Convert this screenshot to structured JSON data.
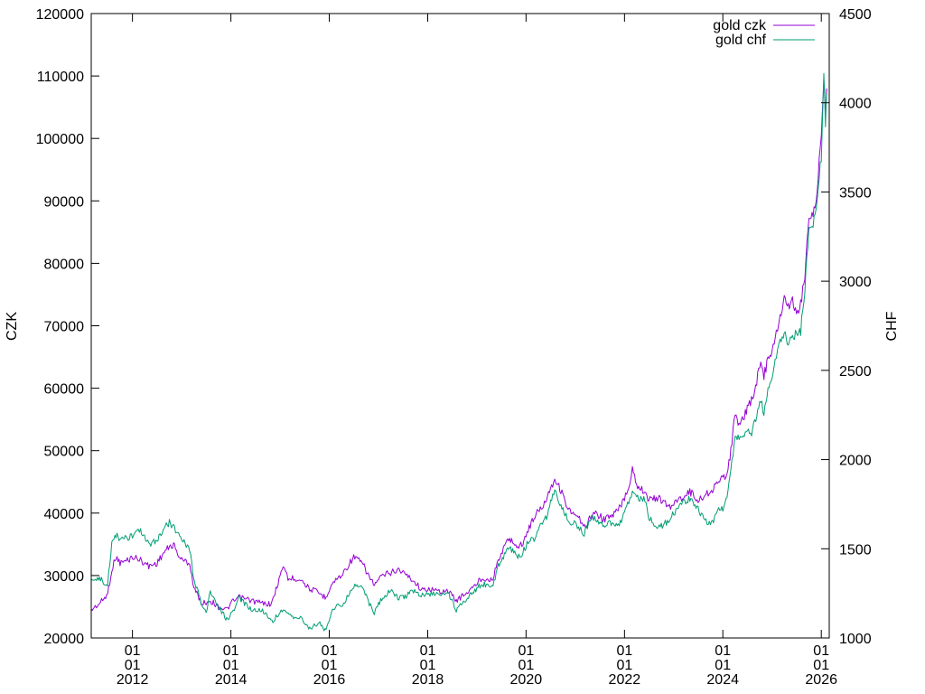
{
  "chart_data": {
    "type": "line",
    "title": "",
    "ylabel": "CZK",
    "y2label": "CHF",
    "xlim": [
      "2011-03-01",
      "2026-03-01"
    ],
    "ylim": [
      20000,
      120000
    ],
    "y2lim": [
      1000,
      4500
    ],
    "y_ticks": [
      20000,
      30000,
      40000,
      50000,
      60000,
      70000,
      80000,
      90000,
      100000,
      110000,
      120000
    ],
    "y2_ticks": [
      1000,
      1500,
      2000,
      2500,
      3000,
      3500,
      4000,
      4500
    ],
    "x_ticks": [
      {
        "date": "2012-01-01",
        "lines": [
          "01",
          "01",
          "2012"
        ]
      },
      {
        "date": "2014-01-01",
        "lines": [
          "01",
          "01",
          "2014"
        ]
      },
      {
        "date": "2016-01-01",
        "lines": [
          "01",
          "01",
          "2016"
        ]
      },
      {
        "date": "2018-01-01",
        "lines": [
          "01",
          "01",
          "2018"
        ]
      },
      {
        "date": "2020-01-01",
        "lines": [
          "01",
          "01",
          "2020"
        ]
      },
      {
        "date": "2022-01-01",
        "lines": [
          "01",
          "01",
          "2022"
        ]
      },
      {
        "date": "2024-01-01",
        "lines": [
          "01",
          "01",
          "2024"
        ]
      },
      {
        "date": "2026-01-01",
        "lines": [
          "01",
          "01",
          "2026"
        ]
      }
    ],
    "grid": false,
    "legend_position": "top-right",
    "series": [
      {
        "name": "gold czk",
        "axis": "left",
        "color": "#9400d3",
        "points": [
          [
            "2011-03-01",
            24500
          ],
          [
            "2011-05-01",
            25500
          ],
          [
            "2011-07-01",
            27000
          ],
          [
            "2011-08-01",
            31000
          ],
          [
            "2011-09-01",
            33000
          ],
          [
            "2011-10-01",
            32000
          ],
          [
            "2011-12-01",
            32500
          ],
          [
            "2012-01-01",
            33000
          ],
          [
            "2012-03-01",
            32500
          ],
          [
            "2012-05-01",
            31500
          ],
          [
            "2012-07-01",
            32000
          ],
          [
            "2012-09-01",
            34000
          ],
          [
            "2012-11-01",
            35000
          ],
          [
            "2012-12-01",
            33500
          ],
          [
            "2013-01-01",
            32500
          ],
          [
            "2013-03-01",
            32000
          ],
          [
            "2013-04-01",
            28000
          ],
          [
            "2013-06-01",
            25500
          ],
          [
            "2013-08-01",
            26000
          ],
          [
            "2013-10-01",
            25000
          ],
          [
            "2013-12-01",
            24500
          ],
          [
            "2014-01-01",
            25500
          ],
          [
            "2014-03-01",
            26500
          ],
          [
            "2014-06-01",
            26000
          ],
          [
            "2014-09-01",
            25500
          ],
          [
            "2014-11-01",
            25500
          ],
          [
            "2015-01-01",
            30000
          ],
          [
            "2015-02-01",
            31500
          ],
          [
            "2015-03-01",
            29500
          ],
          [
            "2015-06-01",
            29500
          ],
          [
            "2015-08-01",
            28000
          ],
          [
            "2015-11-01",
            27000
          ],
          [
            "2015-12-01",
            26500
          ],
          [
            "2016-02-01",
            29000
          ],
          [
            "2016-04-01",
            30000
          ],
          [
            "2016-07-01",
            33000
          ],
          [
            "2016-09-01",
            32000
          ],
          [
            "2016-11-01",
            29500
          ],
          [
            "2016-12-01",
            28500
          ],
          [
            "2017-02-01",
            30000
          ],
          [
            "2017-04-01",
            30500
          ],
          [
            "2017-06-01",
            31000
          ],
          [
            "2017-08-01",
            30000
          ],
          [
            "2017-09-01",
            29500
          ],
          [
            "2017-12-01",
            27500
          ],
          [
            "2018-01-01",
            28000
          ],
          [
            "2018-03-01",
            27500
          ],
          [
            "2018-06-01",
            27500
          ],
          [
            "2018-08-01",
            26000
          ],
          [
            "2018-10-01",
            27000
          ],
          [
            "2018-12-01",
            28000
          ],
          [
            "2019-02-01",
            29500
          ],
          [
            "2019-05-01",
            29500
          ],
          [
            "2019-06-01",
            32000
          ],
          [
            "2019-08-01",
            35000
          ],
          [
            "2019-09-01",
            36000
          ],
          [
            "2019-11-01",
            34500
          ],
          [
            "2019-12-01",
            35000
          ],
          [
            "2020-02-01",
            38000
          ],
          [
            "2020-03-01",
            39500
          ],
          [
            "2020-05-01",
            41000
          ],
          [
            "2020-07-01",
            44000
          ],
          [
            "2020-08-01",
            45500
          ],
          [
            "2020-10-01",
            43000
          ],
          [
            "2020-11-01",
            41000
          ],
          [
            "2020-12-01",
            40000
          ],
          [
            "2021-02-01",
            39000
          ],
          [
            "2021-03-01",
            37500
          ],
          [
            "2021-05-01",
            39500
          ],
          [
            "2021-06-01",
            40000
          ],
          [
            "2021-08-01",
            39000
          ],
          [
            "2021-10-01",
            39500
          ],
          [
            "2021-12-01",
            41000
          ],
          [
            "2022-02-01",
            44000
          ],
          [
            "2022-03-01",
            47500
          ],
          [
            "2022-04-01",
            44500
          ],
          [
            "2022-06-01",
            43500
          ],
          [
            "2022-07-01",
            42000
          ],
          [
            "2022-09-01",
            42500
          ],
          [
            "2022-10-01",
            42000
          ],
          [
            "2022-12-01",
            41000
          ],
          [
            "2023-01-01",
            41500
          ],
          [
            "2023-03-01",
            42500
          ],
          [
            "2023-05-01",
            43500
          ],
          [
            "2023-07-01",
            42000
          ],
          [
            "2023-10-01",
            43500
          ],
          [
            "2023-12-01",
            45000
          ],
          [
            "2024-01-01",
            45500
          ],
          [
            "2024-02-01",
            46500
          ],
          [
            "2024-03-01",
            50000
          ],
          [
            "2024-04-01",
            56000
          ],
          [
            "2024-05-01",
            54000
          ],
          [
            "2024-06-01",
            55000
          ],
          [
            "2024-07-01",
            57000
          ],
          [
            "2024-08-01",
            58000
          ],
          [
            "2024-09-01",
            60000
          ],
          [
            "2024-10-01",
            64000
          ],
          [
            "2024-11-01",
            62000
          ],
          [
            "2024-12-01",
            64500
          ],
          [
            "2025-01-01",
            66000
          ],
          [
            "2025-02-01",
            69000
          ],
          [
            "2025-03-01",
            71000
          ],
          [
            "2025-04-01",
            75000
          ],
          [
            "2025-05-01",
            73000
          ],
          [
            "2025-06-01",
            74000
          ],
          [
            "2025-07-01",
            72000
          ],
          [
            "2025-08-01",
            73500
          ],
          [
            "2025-09-01",
            78000
          ],
          [
            "2025-10-01",
            88000
          ],
          [
            "2025-11-01",
            87000
          ],
          [
            "2025-12-01",
            92000
          ],
          [
            "2026-01-01",
            100000
          ],
          [
            "2026-01-20",
            110000
          ],
          [
            "2026-02-01",
            104000
          ],
          [
            "2026-02-10",
            108000
          ]
        ]
      },
      {
        "name": "gold chf",
        "axis": "right",
        "color": "#009e73",
        "points": [
          [
            "2011-03-01",
            1340
          ],
          [
            "2011-05-01",
            1330
          ],
          [
            "2011-07-01",
            1300
          ],
          [
            "2011-08-01",
            1530
          ],
          [
            "2011-09-01",
            1580
          ],
          [
            "2011-10-01",
            1550
          ],
          [
            "2011-12-01",
            1560
          ],
          [
            "2012-01-01",
            1570
          ],
          [
            "2012-03-01",
            1600
          ],
          [
            "2012-05-01",
            1520
          ],
          [
            "2012-07-01",
            1550
          ],
          [
            "2012-09-01",
            1620
          ],
          [
            "2012-10-01",
            1650
          ],
          [
            "2012-11-01",
            1620
          ],
          [
            "2012-12-01",
            1590
          ],
          [
            "2013-01-01",
            1560
          ],
          [
            "2013-03-01",
            1500
          ],
          [
            "2013-04-01",
            1330
          ],
          [
            "2013-06-01",
            1180
          ],
          [
            "2013-07-01",
            1150
          ],
          [
            "2013-08-01",
            1250
          ],
          [
            "2013-10-01",
            1180
          ],
          [
            "2013-12-01",
            1100
          ],
          [
            "2014-01-01",
            1130
          ],
          [
            "2014-03-01",
            1220
          ],
          [
            "2014-06-01",
            1160
          ],
          [
            "2014-09-01",
            1150
          ],
          [
            "2014-11-01",
            1090
          ],
          [
            "2015-01-01",
            1150
          ],
          [
            "2015-02-01",
            1140
          ],
          [
            "2015-03-01",
            1130
          ],
          [
            "2015-06-01",
            1110
          ],
          [
            "2015-08-01",
            1060
          ],
          [
            "2015-11-01",
            1080
          ],
          [
            "2015-12-01",
            1040
          ],
          [
            "2016-02-01",
            1170
          ],
          [
            "2016-04-01",
            1180
          ],
          [
            "2016-07-01",
            1290
          ],
          [
            "2016-09-01",
            1290
          ],
          [
            "2016-11-01",
            1180
          ],
          [
            "2016-12-01",
            1140
          ],
          [
            "2017-02-01",
            1230
          ],
          [
            "2017-04-01",
            1260
          ],
          [
            "2017-06-01",
            1220
          ],
          [
            "2017-08-01",
            1240
          ],
          [
            "2017-09-01",
            1270
          ],
          [
            "2017-12-01",
            1240
          ],
          [
            "2018-01-01",
            1240
          ],
          [
            "2018-03-01",
            1250
          ],
          [
            "2018-06-01",
            1250
          ],
          [
            "2018-08-01",
            1160
          ],
          [
            "2018-10-01",
            1210
          ],
          [
            "2018-12-01",
            1260
          ],
          [
            "2019-02-01",
            1300
          ],
          [
            "2019-05-01",
            1290
          ],
          [
            "2019-06-01",
            1390
          ],
          [
            "2019-08-01",
            1480
          ],
          [
            "2019-09-01",
            1510
          ],
          [
            "2019-11-01",
            1450
          ],
          [
            "2019-12-01",
            1470
          ],
          [
            "2020-02-01",
            1560
          ],
          [
            "2020-03-01",
            1550
          ],
          [
            "2020-04-01",
            1620
          ],
          [
            "2020-06-01",
            1680
          ],
          [
            "2020-08-01",
            1830
          ],
          [
            "2020-09-01",
            1760
          ],
          [
            "2020-11-01",
            1670
          ],
          [
            "2020-12-01",
            1650
          ],
          [
            "2021-02-01",
            1620
          ],
          [
            "2021-03-01",
            1570
          ],
          [
            "2021-05-01",
            1690
          ],
          [
            "2021-06-01",
            1660
          ],
          [
            "2021-08-01",
            1640
          ],
          [
            "2021-10-01",
            1640
          ],
          [
            "2021-12-01",
            1650
          ],
          [
            "2022-02-01",
            1760
          ],
          [
            "2022-03-01",
            1810
          ],
          [
            "2022-04-01",
            1790
          ],
          [
            "2022-06-01",
            1780
          ],
          [
            "2022-07-01",
            1680
          ],
          [
            "2022-09-01",
            1620
          ],
          [
            "2022-10-01",
            1630
          ],
          [
            "2022-12-01",
            1660
          ],
          [
            "2023-01-01",
            1700
          ],
          [
            "2023-03-01",
            1760
          ],
          [
            "2023-05-01",
            1780
          ],
          [
            "2023-07-01",
            1720
          ],
          [
            "2023-10-01",
            1630
          ],
          [
            "2023-12-01",
            1720
          ],
          [
            "2024-01-01",
            1730
          ],
          [
            "2024-02-01",
            1780
          ],
          [
            "2024-03-01",
            1950
          ],
          [
            "2024-04-01",
            2130
          ],
          [
            "2024-05-01",
            2120
          ],
          [
            "2024-06-01",
            2130
          ],
          [
            "2024-07-01",
            2180
          ],
          [
            "2024-08-01",
            2150
          ],
          [
            "2024-09-01",
            2230
          ],
          [
            "2024-10-01",
            2340
          ],
          [
            "2024-11-01",
            2270
          ],
          [
            "2024-12-01",
            2380
          ],
          [
            "2025-01-01",
            2440
          ],
          [
            "2025-02-01",
            2580
          ],
          [
            "2025-03-01",
            2660
          ],
          [
            "2025-04-01",
            2700
          ],
          [
            "2025-05-01",
            2660
          ],
          [
            "2025-06-01",
            2690
          ],
          [
            "2025-07-01",
            2710
          ],
          [
            "2025-08-01",
            2720
          ],
          [
            "2025-09-01",
            2950
          ],
          [
            "2025-10-01",
            3300
          ],
          [
            "2025-11-01",
            3310
          ],
          [
            "2025-12-01",
            3450
          ],
          [
            "2026-01-01",
            3700
          ],
          [
            "2026-01-20",
            4180
          ],
          [
            "2026-02-01",
            3900
          ],
          [
            "2026-02-10",
            4050
          ]
        ]
      }
    ]
  }
}
